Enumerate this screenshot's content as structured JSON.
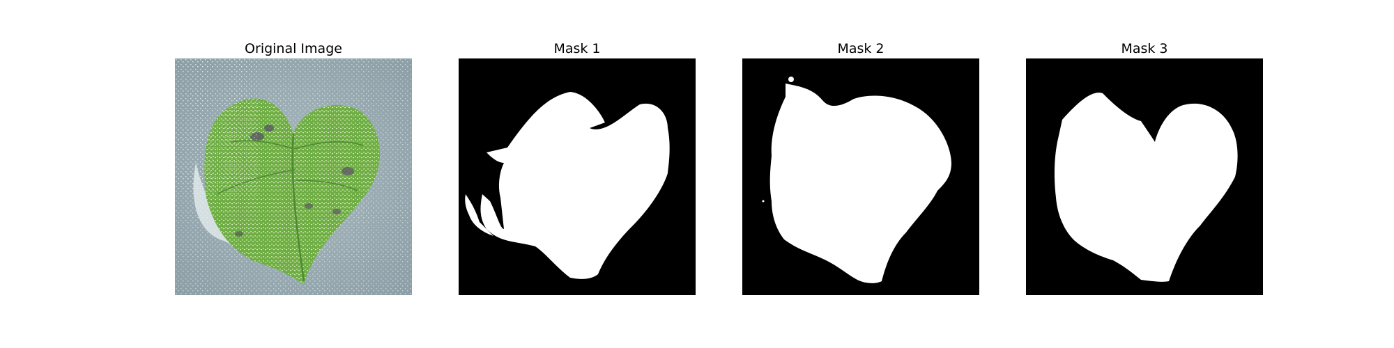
{
  "figure": {
    "panels": [
      {
        "title": "Original Image",
        "kind": "photo",
        "subject": "heart-shaped green leaf on grey background"
      },
      {
        "title": "Mask 1",
        "kind": "mask"
      },
      {
        "title": "Mask 2",
        "kind": "mask"
      },
      {
        "title": "Mask 3",
        "kind": "mask"
      }
    ],
    "colors": {
      "mask_foreground": "#ffffff",
      "mask_background": "#000000",
      "photo_background": "#9fb0b7",
      "leaf_green": "#6fae45",
      "leaf_light": "#b8e08a"
    }
  }
}
